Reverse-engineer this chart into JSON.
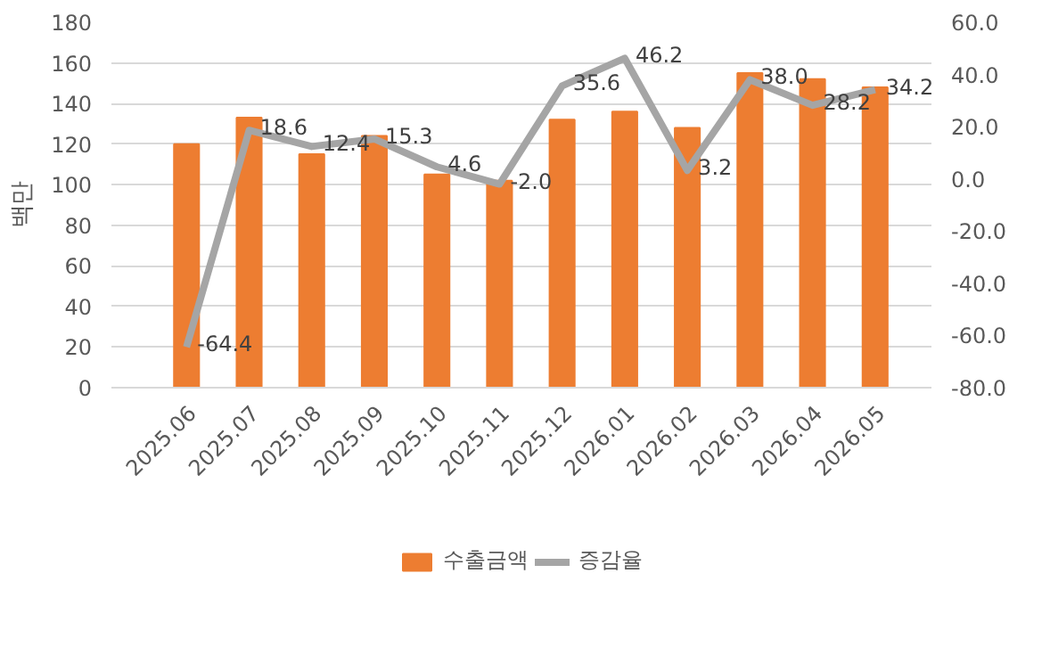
{
  "chart_data": {
    "type": "bar",
    "ylabel": "백만",
    "categories": [
      "2025.06",
      "2025.07",
      "2025.08",
      "2025.09",
      "2025.10",
      "2025.11",
      "2025.12",
      "2026.01",
      "2026.02",
      "2026.03",
      "2026.04",
      "2026.05"
    ],
    "series": [
      {
        "name": "수출금액",
        "color": "#ed7d31",
        "values": [
          120,
          133,
          115,
          124,
          105,
          102,
          132,
          136,
          128,
          155,
          152,
          148
        ]
      },
      {
        "name": "증감율",
        "type": "line",
        "axis": "y2",
        "color": "#a5a5a5",
        "data_labels": true,
        "values": [
          -64.4,
          18.6,
          12.4,
          15.3,
          4.6,
          -2.0,
          35.6,
          46.2,
          3.2,
          38.0,
          28.2,
          34.2
        ],
        "value_labels": [
          "-64.4",
          "18.6",
          "12.4",
          "15.3",
          "4.6",
          "-2.0",
          "35.6",
          "46.2",
          "3.2",
          "38.0",
          "28.2",
          "34.2"
        ]
      }
    ],
    "ylim": [
      0,
      180
    ],
    "yticks": [
      0,
      20,
      40,
      60,
      80,
      100,
      120,
      140,
      160,
      180
    ],
    "y2lim": [
      -80,
      60
    ],
    "y2ticks": [
      {
        "value": -80,
        "label": "-80.0"
      },
      {
        "value": -60,
        "label": "-60.0"
      },
      {
        "value": -40,
        "label": "-40.0"
      },
      {
        "value": -20,
        "label": "-20.0"
      },
      {
        "value": 0,
        "label": "0.0"
      },
      {
        "value": 20,
        "label": "20.0"
      },
      {
        "value": 40,
        "label": "40.0"
      },
      {
        "value": 60,
        "label": "60.0"
      }
    ],
    "grid": "y",
    "legend": "bottom"
  }
}
